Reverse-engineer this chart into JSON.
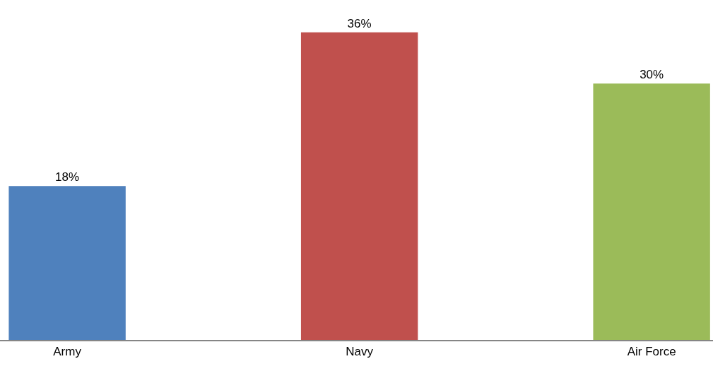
{
  "chart_data": {
    "type": "bar",
    "categories": [
      "Army",
      "Navy",
      "Air Force"
    ],
    "values": [
      18,
      36,
      30
    ],
    "colors": [
      "#4f81bd",
      "#c0504d",
      "#9bbb59"
    ],
    "value_labels": [
      "18%",
      "36%",
      "30%"
    ]
  }
}
